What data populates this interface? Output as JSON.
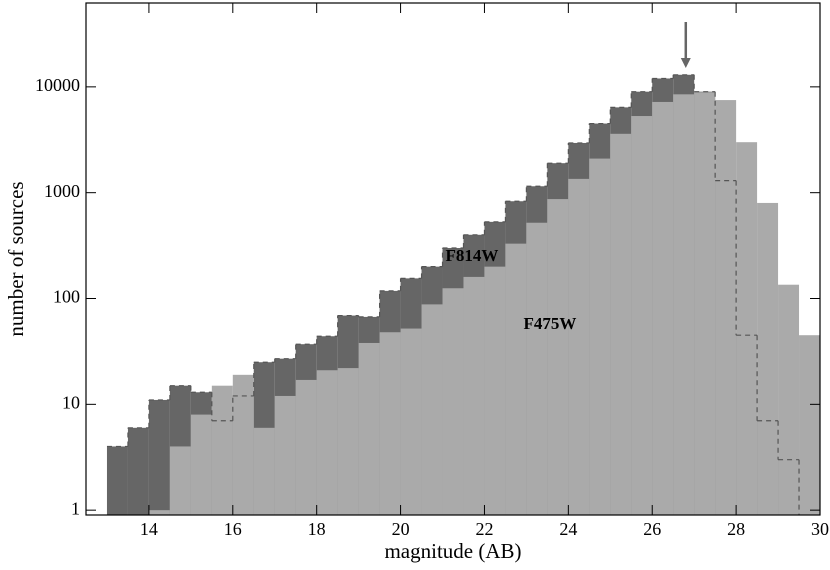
{
  "chart_data": {
    "type": "histogram",
    "xlabel": "magnitude (AB)",
    "ylabel": "number of sources",
    "bins": [
      13,
      13.5,
      14,
      14.5,
      15,
      15.5,
      16,
      16.5,
      17,
      17.5,
      18,
      18.5,
      19,
      19.5,
      20,
      20.5,
      21,
      21.5,
      22,
      22.5,
      23,
      23.5,
      24,
      24.5,
      25,
      25.5,
      26,
      26.5,
      27,
      27.5,
      28,
      28.5,
      29,
      29.5,
      30
    ],
    "series": [
      {
        "name": "F814W",
        "color": "#666666",
        "outline": "dashed",
        "values": [
          4,
          6,
          11,
          15,
          13,
          7,
          12,
          25,
          27,
          37,
          44,
          69,
          67,
          118,
          155,
          200,
          300,
          400,
          530,
          830,
          1150,
          1900,
          2950,
          4500,
          6400,
          9000,
          12000,
          13000,
          9000,
          1300,
          45,
          7,
          3,
          null
        ]
      },
      {
        "name": "F475W",
        "color": "#aaaaaa",
        "values": [
          null,
          null,
          1,
          4,
          8,
          15,
          19,
          6,
          12,
          17,
          21,
          22,
          38,
          48,
          52,
          88,
          125,
          160,
          200,
          330,
          520,
          870,
          1350,
          2100,
          3600,
          5300,
          7200,
          8500,
          8900,
          7500,
          3000,
          800,
          135,
          45
        ]
      }
    ],
    "arrow_x": 26.8,
    "ylog": true,
    "xlim": [
      12.5,
      30
    ],
    "ylim": [
      0.9,
      62000
    ],
    "xticks": [
      14,
      16,
      18,
      20,
      22,
      24,
      26,
      28,
      30
    ],
    "yticks": [
      1,
      10,
      100,
      1000,
      10000
    ]
  }
}
